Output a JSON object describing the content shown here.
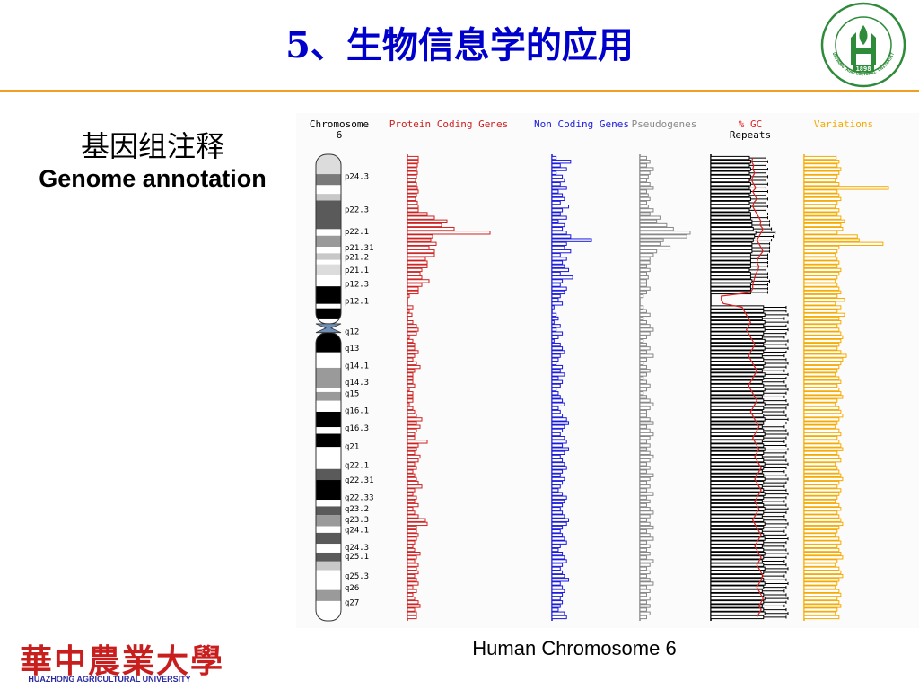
{
  "slide": {
    "title": "5、生物信息学的应用",
    "subtitle_cn": "基因组注释",
    "subtitle_en": "Genome annotation",
    "caption": "Human Chromosome 6"
  },
  "logo": {
    "name_cn": "華中農業大學",
    "name_en": "HUAZHONG AGRICULTURAL UNIVERSITY"
  },
  "seal": {
    "year": "1898",
    "ring_text": "HUAZHONG AGRICULTURAL UNIVERSITY"
  },
  "colors": {
    "title": "#0000cc",
    "rule": "#f0a020",
    "protein": "#cc2222",
    "noncoding": "#1a1adc",
    "pseudo": "#888888",
    "repeats": "#000000",
    "gc": "#dd2222",
    "variations": "#f5aa00",
    "seal_green": "#2e8b3a"
  },
  "chromosome": {
    "title_line1": "Chromosome",
    "title_line2": "6",
    "bands": [
      {
        "label": "p24.3",
        "shade": "#dcdcdc",
        "start": 0,
        "end": 4.5
      },
      {
        "label": "",
        "shade": "#7a7a7a",
        "start": 4.5,
        "end": 7
      },
      {
        "label": "",
        "shade": "#ffffff",
        "start": 7,
        "end": 9
      },
      {
        "label": "",
        "shade": "#c8c8c8",
        "start": 9,
        "end": 10.5
      },
      {
        "label": "p22.3",
        "shade": "#5a5a5a",
        "start": 10.5,
        "end": 17
      },
      {
        "label": "",
        "shade": "#ffffff",
        "start": 17,
        "end": 18.5
      },
      {
        "label": "p22.1",
        "shade": "#9a9a9a",
        "start": 18.5,
        "end": 21
      },
      {
        "label": "",
        "shade": "#ffffff",
        "start": 21,
        "end": 22.5
      },
      {
        "label": "p21.31",
        "shade": "#c8c8c8",
        "start": 22.5,
        "end": 24
      },
      {
        "label": "p21.2",
        "shade": "#ffffff",
        "start": 24,
        "end": 25
      },
      {
        "label": "",
        "shade": "#dcdcdc",
        "start": 25,
        "end": 27.5
      },
      {
        "label": "p21.1",
        "shade": "#ffffff",
        "start": 27.5,
        "end": 30
      },
      {
        "label": "p12.3",
        "shade": "#000000",
        "start": 30,
        "end": 34
      },
      {
        "label": "",
        "shade": "#ffffff",
        "start": 34,
        "end": 35
      },
      {
        "label": "p12.1",
        "shade": "#000000",
        "start": 35,
        "end": 37.5
      },
      {
        "label": "",
        "shade": "#ffffff",
        "start": 37.5,
        "end": 38.5
      },
      {
        "label": "q12",
        "shade": "#000000",
        "start": 40.5,
        "end": 45
      },
      {
        "label": "q13",
        "shade": "#ffffff",
        "start": 45,
        "end": 48.5
      },
      {
        "label": "q14.1",
        "shade": "#9a9a9a",
        "start": 48.5,
        "end": 53
      },
      {
        "label": "",
        "shade": "#ffffff",
        "start": 53,
        "end": 54
      },
      {
        "label": "q14.3",
        "shade": "#9a9a9a",
        "start": 54,
        "end": 56
      },
      {
        "label": "q15",
        "shade": "#ffffff",
        "start": 56,
        "end": 58.5
      },
      {
        "label": "q16.1",
        "shade": "#000000",
        "start": 58.5,
        "end": 62
      },
      {
        "label": "",
        "shade": "#ffffff",
        "start": 62,
        "end": 63.5
      },
      {
        "label": "q16.3",
        "shade": "#000000",
        "start": 63.5,
        "end": 66.5
      },
      {
        "label": "q21",
        "shade": "#ffffff",
        "start": 66.5,
        "end": 71.5
      },
      {
        "label": "q22.1",
        "shade": "#5a5a5a",
        "start": 71.5,
        "end": 74
      },
      {
        "label": "q22.31",
        "shade": "#000000",
        "start": 74,
        "end": 78.5
      },
      {
        "label": "",
        "shade": "#ffffff",
        "start": 78.5,
        "end": 80
      },
      {
        "label": "q22.33",
        "shade": "#5a5a5a",
        "start": 80,
        "end": 82
      },
      {
        "label": "q23.2",
        "shade": "#9a9a9a",
        "start": 82,
        "end": 84.5
      },
      {
        "label": "q23.3",
        "shade": "#ffffff",
        "start": 84.5,
        "end": 86
      },
      {
        "label": "q24.1",
        "shade": "#5a5a5a",
        "start": 86,
        "end": 88.5
      },
      {
        "label": "",
        "shade": "#ffffff",
        "start": 88.5,
        "end": 90.5
      },
      {
        "label": "q24.3",
        "shade": "#5a5a5a",
        "start": 90.5,
        "end": 92.5
      },
      {
        "label": "q25.1",
        "shade": "#c8c8c8",
        "start": 92.5,
        "end": 94.5
      },
      {
        "label": "",
        "shade": "#ffffff",
        "start": 94.5,
        "end": 97
      },
      {
        "label": "q25.3",
        "shade": "#ffffff",
        "start": 97,
        "end": 99
      },
      {
        "label": "q26",
        "shade": "#9a9a9a",
        "start": 99,
        "end": 101.5
      },
      {
        "label": "q27",
        "shade": "#ffffff",
        "start": 101.5,
        "end": 106
      }
    ],
    "band_labels": [
      {
        "text": "p24.3",
        "pos": 5
      },
      {
        "text": "p22.3",
        "pos": 12.5
      },
      {
        "text": "p22.1",
        "pos": 17.5
      },
      {
        "text": "p21.31",
        "pos": 21.2
      },
      {
        "text": "p21.2",
        "pos": 23.3
      },
      {
        "text": "p21.1",
        "pos": 26.3
      },
      {
        "text": "p12.3",
        "pos": 29.5
      },
      {
        "text": "p12.1",
        "pos": 33.3
      },
      {
        "text": "q12",
        "pos": 40.3
      },
      {
        "text": "q13",
        "pos": 44
      },
      {
        "text": "q14.1",
        "pos": 48
      },
      {
        "text": "q14.3",
        "pos": 51.8
      },
      {
        "text": "q15",
        "pos": 54.3
      },
      {
        "text": "q16.1",
        "pos": 58.2
      },
      {
        "text": "q16.3",
        "pos": 62.2
      },
      {
        "text": "q21",
        "pos": 66.4
      },
      {
        "text": "q22.1",
        "pos": 70.6
      },
      {
        "text": "q22.31",
        "pos": 74
      },
      {
        "text": "q22.33",
        "pos": 78
      },
      {
        "text": "q23.2",
        "pos": 80.5
      },
      {
        "text": "q23.3",
        "pos": 83
      },
      {
        "text": "q24.1",
        "pos": 85.3
      },
      {
        "text": "q24.3",
        "pos": 89.3
      },
      {
        "text": "q25.1",
        "pos": 91.3
      },
      {
        "text": "q25.3",
        "pos": 95.8
      },
      {
        "text": "q26",
        "pos": 98.5
      },
      {
        "text": "q27",
        "pos": 101.8
      }
    ]
  },
  "chart_data": {
    "type": "bar",
    "title": "Human Chromosome 6",
    "orientation": "horizontal",
    "series": [
      {
        "name": "Protein Coding Genes",
        "values": [
          12,
          12,
          11,
          10,
          11,
          10,
          9,
          10,
          11,
          12,
          10,
          9,
          11,
          12,
          12,
          22,
          30,
          44,
          38,
          52,
          92,
          28,
          26,
          32,
          24,
          30,
          30,
          20,
          22,
          22,
          16,
          14,
          16,
          24,
          16,
          12,
          12,
          2,
          0,
          0,
          6,
          2,
          5,
          0,
          6,
          10,
          12,
          10,
          2,
          6,
          8,
          8,
          12,
          8,
          6,
          10,
          14,
          8,
          6,
          6,
          6,
          8,
          2,
          6,
          6,
          6,
          2,
          6,
          8,
          10,
          16,
          10,
          14,
          10,
          8,
          8,
          22,
          12,
          10,
          8,
          14,
          12,
          8,
          10,
          6,
          8,
          10,
          12,
          16,
          8,
          6,
          10,
          8,
          12,
          6,
          8,
          12,
          20,
          22,
          10,
          10,
          12,
          10,
          8,
          6,
          8,
          14,
          10,
          8,
          12,
          10,
          12,
          8,
          10,
          12,
          6,
          10,
          6,
          8,
          12,
          14,
          8,
          10,
          10
        ]
      },
      {
        "name": "Non Coding Genes",
        "values": [
          4,
          18,
          8,
          14,
          4,
          10,
          12,
          8,
          14,
          6,
          10,
          12,
          8,
          16,
          10,
          8,
          14,
          6,
          12,
          10,
          14,
          18,
          38,
          14,
          12,
          18,
          8,
          14,
          10,
          12,
          16,
          8,
          20,
          10,
          8,
          14,
          12,
          8,
          6,
          10,
          2,
          0,
          4,
          6,
          2,
          8,
          4,
          10,
          6,
          2,
          8,
          10,
          12,
          8,
          6,
          4,
          10,
          8,
          12,
          6,
          10,
          8,
          4,
          6,
          8,
          10,
          12,
          6,
          8,
          10,
          14,
          16,
          12,
          10,
          8,
          12,
          14,
          10,
          16,
          12,
          8,
          10,
          12,
          14,
          10,
          8,
          12,
          10,
          8,
          6,
          10,
          14,
          12,
          10,
          8,
          10,
          12,
          16,
          14,
          10,
          8,
          10,
          12,
          14,
          8,
          6,
          10,
          12,
          14,
          10,
          8,
          10,
          12,
          16,
          8,
          10,
          12,
          10,
          8,
          10,
          8,
          6,
          12,
          14
        ]
      },
      {
        "name": "Pseudogenes",
        "values": [
          4,
          6,
          4,
          8,
          6,
          5,
          4,
          6,
          8,
          4,
          5,
          6,
          4,
          5,
          8,
          6,
          12,
          10,
          16,
          20,
          30,
          28,
          14,
          12,
          18,
          10,
          8,
          6,
          6,
          4,
          6,
          4,
          5,
          4,
          4,
          6,
          4,
          2,
          0,
          0,
          2,
          4,
          6,
          2,
          4,
          6,
          8,
          6,
          4,
          2,
          4,
          6,
          4,
          8,
          4,
          2,
          4,
          6,
          4,
          2,
          4,
          6,
          4,
          2,
          4,
          6,
          8,
          6,
          4,
          4,
          6,
          8,
          4,
          6,
          8,
          6,
          4,
          6,
          4,
          6,
          8,
          6,
          4,
          6,
          4,
          8,
          6,
          4,
          6,
          4,
          8,
          4,
          6,
          4,
          6,
          8,
          6,
          4,
          6,
          8,
          4,
          6,
          8,
          4,
          6,
          4,
          6,
          4,
          8,
          6,
          4,
          6,
          4,
          6,
          8,
          4,
          6,
          4,
          6,
          4,
          6,
          4,
          6,
          4
        ]
      },
      {
        "name": "Repeats",
        "values": [
          60,
          62,
          60,
          62,
          60,
          62,
          60,
          62,
          60,
          62,
          60,
          62,
          60,
          62,
          60,
          62,
          62,
          64,
          64,
          66,
          70,
          68,
          66,
          64,
          64,
          64,
          62,
          62,
          62,
          62,
          60,
          62,
          62,
          64,
          62,
          62,
          62,
          0,
          0,
          0,
          82,
          82,
          84,
          80,
          84,
          82,
          84,
          82,
          80,
          84,
          82,
          84,
          82,
          80,
          82,
          84,
          82,
          80,
          84,
          82,
          80,
          82,
          84,
          82,
          80,
          82,
          84,
          82,
          80,
          82,
          84,
          82,
          80,
          82,
          84,
          82,
          80,
          82,
          84,
          82,
          80,
          82,
          84,
          82,
          80,
          82,
          84,
          82,
          80,
          82,
          84,
          82,
          80,
          82,
          84,
          82,
          80,
          82,
          84,
          82,
          80,
          82,
          84,
          82,
          80,
          82,
          84,
          82,
          80,
          82,
          84,
          82,
          80,
          82,
          84,
          82,
          80,
          82,
          84,
          82,
          80,
          82,
          84,
          82
        ]
      },
      {
        "name": "% GC",
        "values": [
          40,
          39,
          41,
          40,
          42,
          40,
          39,
          41,
          43,
          40,
          42,
          44,
          41,
          40,
          42,
          44,
          46,
          48,
          47,
          50,
          48,
          46,
          44,
          46,
          48,
          50,
          47,
          45,
          44,
          46,
          45,
          43,
          42,
          41,
          40,
          40,
          38,
          10,
          10,
          12,
          30,
          32,
          34,
          36,
          38,
          36,
          34,
          36,
          38,
          40,
          42,
          40,
          38,
          36,
          38,
          40,
          42,
          44,
          42,
          40,
          38,
          36,
          38,
          40,
          42,
          44,
          42,
          40,
          38,
          40,
          42,
          44,
          46,
          44,
          42,
          40,
          42,
          44,
          46,
          44,
          42,
          44,
          46,
          48,
          46,
          44,
          42,
          44,
          46,
          48,
          46,
          44,
          42,
          44,
          46,
          44,
          42,
          40,
          42,
          44,
          46,
          48,
          46,
          44,
          42,
          44,
          46,
          48,
          46,
          44,
          46,
          48,
          50,
          48,
          46,
          44,
          46,
          48,
          50,
          48,
          46,
          48,
          46,
          44
        ]
      },
      {
        "name": "Variations",
        "values": [
          35,
          38,
          36,
          40,
          38,
          36,
          34,
          38,
          92,
          36,
          38,
          40,
          36,
          34,
          38,
          36,
          40,
          44,
          40,
          42,
          36,
          58,
          60,
          86,
          38,
          36,
          34,
          36,
          38,
          36,
          40,
          38,
          36,
          34,
          36,
          38,
          40,
          36,
          44,
          34,
          40,
          36,
          44,
          38,
          40,
          36,
          38,
          40,
          42,
          40,
          38,
          36,
          40,
          46,
          42,
          40,
          38,
          36,
          34,
          38,
          40,
          36,
          38,
          40,
          42,
          36,
          34,
          38,
          40,
          42,
          38,
          36,
          34,
          38,
          40,
          36,
          38,
          40,
          42,
          36,
          38,
          40,
          34,
          36,
          38,
          40,
          42,
          38,
          36,
          40,
          38,
          36,
          34,
          38,
          40,
          36,
          38,
          40,
          42,
          38,
          36,
          34,
          38,
          40,
          36,
          38,
          40,
          42,
          36,
          34,
          38,
          40,
          42,
          38,
          36,
          34,
          38,
          40,
          36,
          38,
          40,
          36,
          34,
          38
        ]
      }
    ]
  }
}
